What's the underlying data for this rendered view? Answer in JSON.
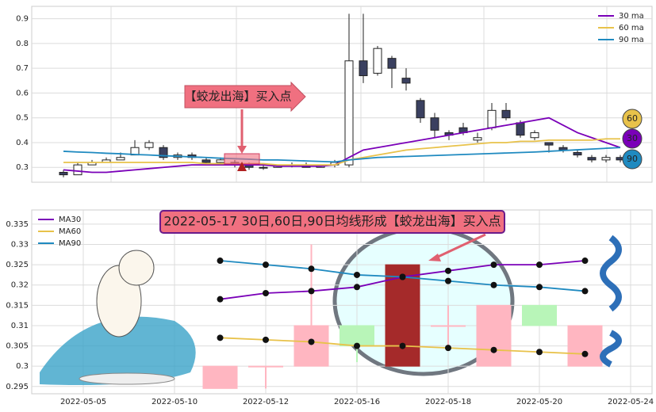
{
  "chart_data": [
    {
      "type": "candlestick",
      "legend": "upper right",
      "grid": true,
      "ylim": [
        0.24,
        0.95
      ],
      "yticks": [
        0.3,
        0.4,
        0.5,
        0.6,
        0.7,
        0.8,
        0.9
      ],
      "annotation": "【蛟龙出海】买入点",
      "up_color": "#ffffff",
      "down_color": "#3a4060",
      "open": [
        0.28,
        0.27,
        0.31,
        0.32,
        0.33,
        0.35,
        0.38,
        0.38,
        0.34,
        0.35,
        0.33,
        0.32,
        0.32,
        0.31,
        0.3,
        0.3,
        0.31,
        0.31,
        0.3,
        0.31,
        0.31,
        0.73,
        0.68,
        0.74,
        0.66,
        0.57,
        0.5,
        0.44,
        0.46,
        0.41,
        0.46,
        0.53,
        0.48,
        0.42,
        0.4,
        0.38,
        0.36,
        0.34,
        0.33,
        0.34
      ],
      "close": [
        0.27,
        0.31,
        0.32,
        0.33,
        0.34,
        0.38,
        0.4,
        0.34,
        0.35,
        0.34,
        0.32,
        0.33,
        0.31,
        0.3,
        0.3,
        0.31,
        0.31,
        0.3,
        0.31,
        0.32,
        0.73,
        0.67,
        0.78,
        0.7,
        0.64,
        0.5,
        0.45,
        0.43,
        0.44,
        0.42,
        0.53,
        0.5,
        0.43,
        0.44,
        0.39,
        0.37,
        0.35,
        0.33,
        0.34,
        0.33
      ],
      "high": [
        0.29,
        0.32,
        0.33,
        0.34,
        0.36,
        0.41,
        0.41,
        0.39,
        0.36,
        0.36,
        0.34,
        0.34,
        0.33,
        0.32,
        0.31,
        0.31,
        0.32,
        0.32,
        0.31,
        0.33,
        0.92,
        0.92,
        0.79,
        0.75,
        0.7,
        0.58,
        0.52,
        0.45,
        0.48,
        0.44,
        0.56,
        0.56,
        0.49,
        0.45,
        0.4,
        0.39,
        0.37,
        0.35,
        0.35,
        0.35
      ],
      "low": [
        0.26,
        0.27,
        0.31,
        0.32,
        0.33,
        0.35,
        0.37,
        0.33,
        0.33,
        0.33,
        0.31,
        0.31,
        0.3,
        0.29,
        0.29,
        0.3,
        0.3,
        0.3,
        0.3,
        0.3,
        0.3,
        0.64,
        0.67,
        0.62,
        0.61,
        0.48,
        0.42,
        0.41,
        0.43,
        0.4,
        0.45,
        0.49,
        0.42,
        0.41,
        0.36,
        0.36,
        0.34,
        0.32,
        0.32,
        0.32
      ],
      "series": [
        {
          "name": "30 ma",
          "color": "#7a00b8",
          "end_label": "30",
          "values": [
            0.29,
            0.285,
            0.28,
            0.28,
            0.285,
            0.29,
            0.295,
            0.3,
            0.305,
            0.31,
            0.31,
            0.31,
            0.31,
            0.31,
            0.31,
            0.305,
            0.305,
            0.305,
            0.305,
            0.31,
            0.34,
            0.37,
            0.38,
            0.39,
            0.4,
            0.41,
            0.42,
            0.43,
            0.44,
            0.45,
            0.46,
            0.47,
            0.48,
            0.49,
            0.5,
            0.47,
            0.44,
            0.42,
            0.4,
            0.38
          ]
        },
        {
          "name": "60 ma",
          "color": "#e8c24a",
          "end_label": "60",
          "values": [
            0.32,
            0.32,
            0.32,
            0.32,
            0.32,
            0.32,
            0.32,
            0.32,
            0.32,
            0.32,
            0.315,
            0.315,
            0.315,
            0.315,
            0.315,
            0.31,
            0.31,
            0.31,
            0.31,
            0.31,
            0.33,
            0.34,
            0.35,
            0.36,
            0.37,
            0.375,
            0.38,
            0.385,
            0.39,
            0.395,
            0.4,
            0.4,
            0.405,
            0.405,
            0.41,
            0.41,
            0.41,
            0.41,
            0.415,
            0.415
          ]
        },
        {
          "name": "90 ma",
          "color": "#1f8ac0",
          "end_label": "90",
          "values": [
            0.365,
            0.362,
            0.36,
            0.357,
            0.355,
            0.352,
            0.35,
            0.347,
            0.345,
            0.342,
            0.34,
            0.337,
            0.335,
            0.333,
            0.33,
            0.33,
            0.328,
            0.326,
            0.324,
            0.322,
            0.33,
            0.335,
            0.34,
            0.342,
            0.344,
            0.346,
            0.348,
            0.35,
            0.352,
            0.354,
            0.356,
            0.358,
            0.36,
            0.362,
            0.365,
            0.368,
            0.371,
            0.374,
            0.377,
            0.38
          ]
        }
      ]
    },
    {
      "type": "candlestick",
      "legend": "upper left",
      "grid": true,
      "title": "2022-05-17 30日,60日,90日均线形成【蛟龙出海】买入点",
      "ylim": [
        0.2932,
        0.3385
      ],
      "yticks": [
        0.295,
        0.3,
        0.305,
        0.31,
        0.315,
        0.32,
        0.325,
        0.33,
        0.335
      ],
      "categories": [
        "2022-05-05",
        null,
        "2022-05-10",
        null,
        "2022-05-12",
        null,
        "2022-05-16",
        null,
        "2022-05-18",
        null,
        "2022-05-20",
        null,
        "2022-05-24"
      ],
      "open": [
        null,
        null,
        null,
        0.2945,
        0.3,
        0.3,
        0.31,
        0.3,
        0.31,
        0.3,
        0.315,
        0.3,
        null
      ],
      "close": [
        null,
        null,
        null,
        0.3,
        0.3,
        0.31,
        0.305,
        0.325,
        0.31,
        0.315,
        0.31,
        0.31,
        null
      ],
      "high": [
        null,
        null,
        null,
        0.3,
        0.3,
        0.33,
        0.31,
        0.325,
        0.315,
        0.315,
        0.315,
        0.31,
        null
      ],
      "low": [
        null,
        null,
        null,
        0.2945,
        0.2945,
        0.3,
        0.301,
        0.3,
        0.305,
        0.3,
        0.31,
        0.3,
        null
      ],
      "colors": [
        null,
        null,
        null,
        "#ffb6c1",
        "#ffb6c1",
        "#ffb6c1",
        "#b8f5b8",
        "#a52a2a",
        "#ffb6c1",
        "#ffb6c1",
        "#b8f5b8",
        "#ffb6c1",
        null
      ],
      "series": [
        {
          "name": "MA30",
          "color": "#7a00b8",
          "values": [
            null,
            null,
            null,
            0.3165,
            0.318,
            0.3185,
            0.3195,
            0.322,
            0.3235,
            0.325,
            0.325,
            0.326,
            null
          ]
        },
        {
          "name": "MA60",
          "color": "#e8c24a",
          "values": [
            null,
            null,
            null,
            0.307,
            0.3065,
            0.306,
            0.305,
            0.305,
            0.3045,
            0.304,
            0.3035,
            0.303,
            null
          ]
        },
        {
          "name": "MA90",
          "color": "#1f8ac0",
          "values": [
            null,
            null,
            null,
            0.326,
            0.325,
            0.324,
            0.3225,
            0.322,
            0.321,
            0.32,
            0.3195,
            0.3185,
            null
          ]
        }
      ]
    }
  ]
}
